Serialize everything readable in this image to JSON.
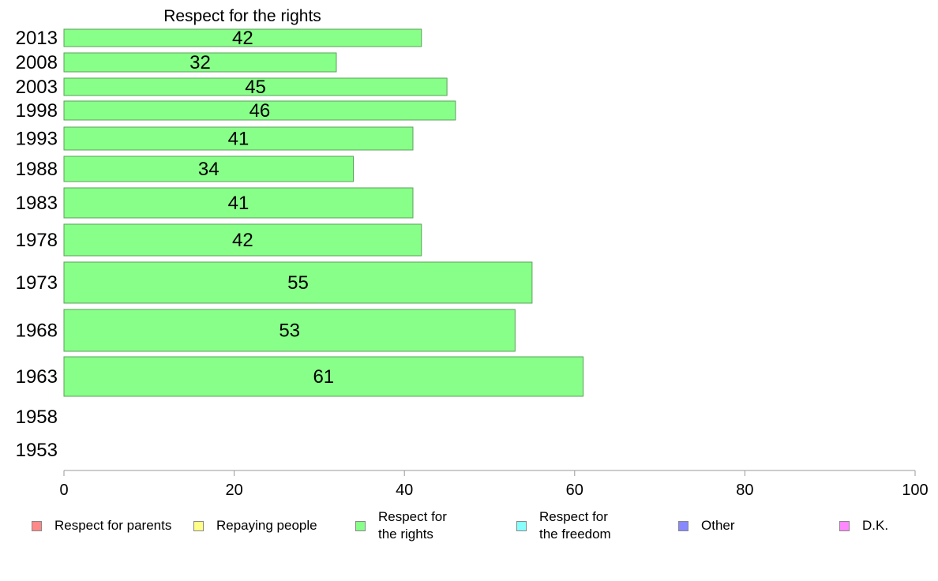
{
  "chart_data": {
    "type": "bar",
    "orientation": "horizontal",
    "title": "Respect for the rights",
    "categories": [
      "2013",
      "2008",
      "2003",
      "1998",
      "1993",
      "1988",
      "1983",
      "1978",
      "1973",
      "1968",
      "1963",
      "1958",
      "1953"
    ],
    "values": [
      42,
      32,
      45,
      46,
      41,
      34,
      41,
      42,
      55,
      53,
      61,
      null,
      null
    ],
    "value_labels": [
      "42",
      "32",
      "45",
      "46",
      "41",
      "34",
      "41",
      "42",
      "55",
      "53",
      "61",
      "",
      ""
    ],
    "xlim": [
      0,
      100
    ],
    "xticks": [
      "0",
      "20",
      "40",
      "60",
      "80",
      "100"
    ],
    "xlabel": "",
    "ylabel": "",
    "grid": false,
    "bar_color": "#88ff88",
    "legend_position": "bottom",
    "legend": [
      {
        "label": "Respect for parents",
        "color": "#ff8888"
      },
      {
        "label": "Repaying people",
        "color": "#ffff88"
      },
      {
        "label": "Respect for\nthe rights",
        "color": "#88ff88"
      },
      {
        "label": "Respect for\nthe freedom",
        "color": "#88ffff"
      },
      {
        "label": "Other",
        "color": "#8888ff"
      },
      {
        "label": "D.K.",
        "color": "#ff88ff"
      }
    ]
  }
}
